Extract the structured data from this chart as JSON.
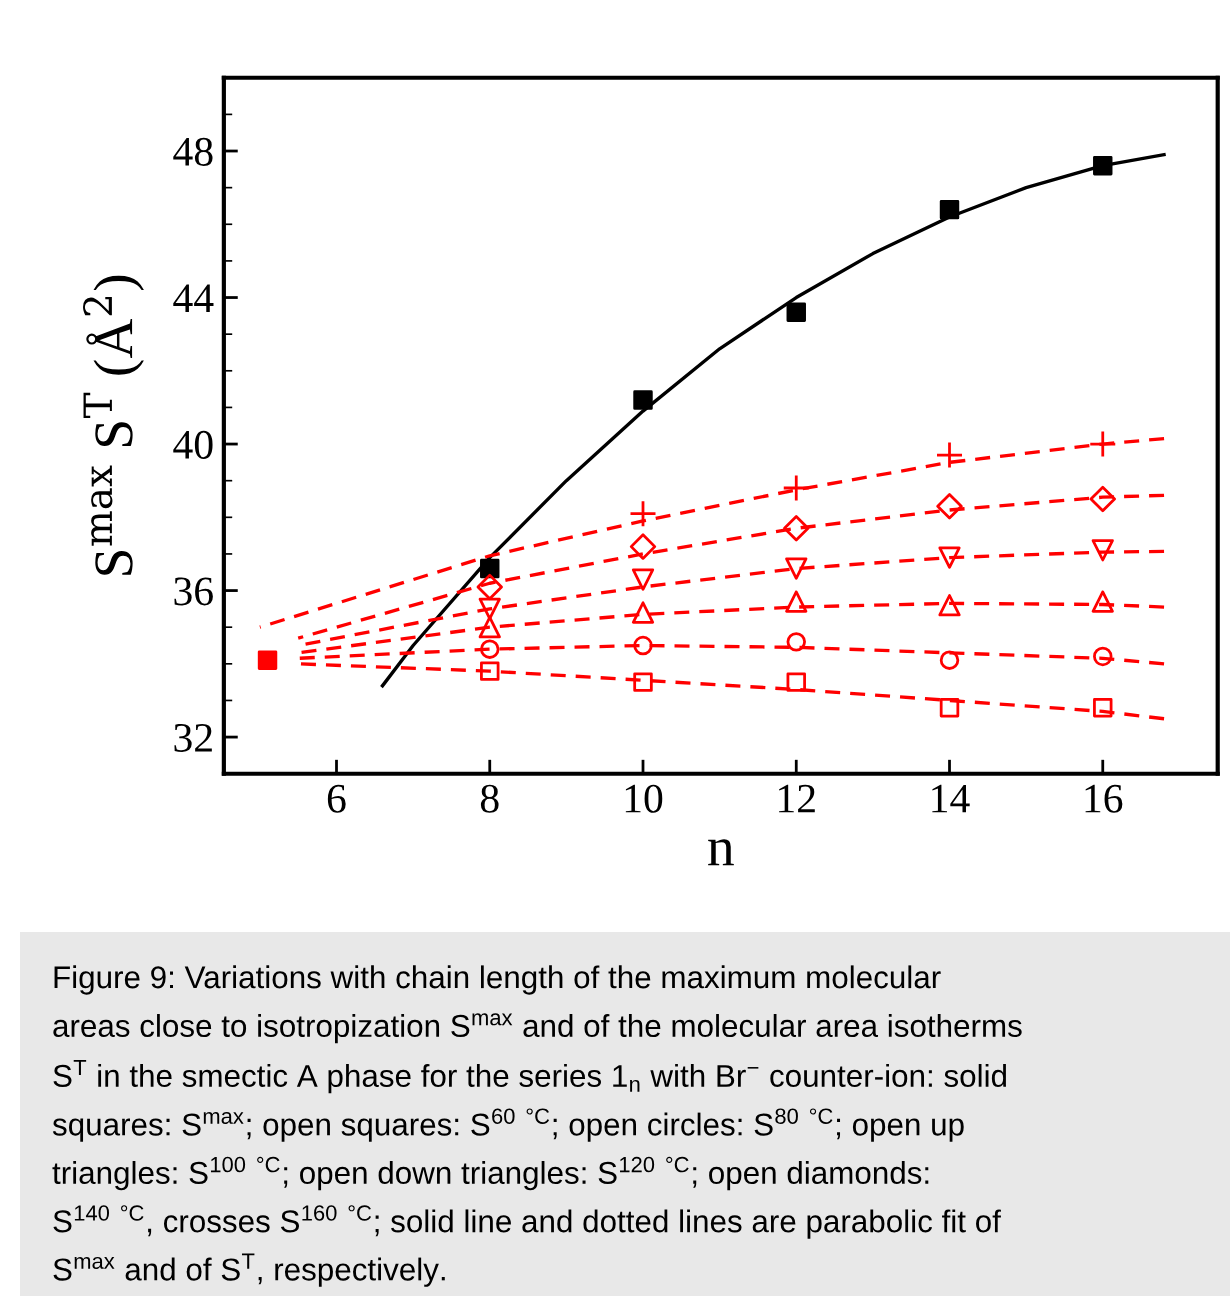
{
  "chart_data": {
    "type": "scatter",
    "xlabel": "n",
    "ylabel": "S$^{max}$ S$^{T}$ (Å$^{2}$)",
    "xlim": [
      4.53,
      17.5
    ],
    "ylim": [
      31,
      50
    ],
    "xticks": [
      6,
      8,
      10,
      12,
      14,
      16
    ],
    "yticks": [
      32,
      36,
      40,
      44,
      48
    ],
    "grid": false,
    "series": [
      {
        "type": "line",
        "color": "#000000",
        "marker": "none",
        "line_style": "solid",
        "x": [
          6.6,
          7,
          8,
          9,
          10,
          11,
          12,
          13,
          14,
          15,
          16,
          16.8
        ],
        "values": [
          33.4,
          34.5,
          36.9,
          39.0,
          40.9,
          42.6,
          44.0,
          45.2,
          46.2,
          47.0,
          47.6,
          47.9
        ]
      },
      {
        "color": "#000000",
        "marker": "square",
        "x": [
          8,
          10,
          12,
          14,
          16
        ],
        "values": [
          36.6,
          41.2,
          43.6,
          46.4,
          47.6
        ]
      },
      {
        "type": "line",
        "color": "#ff0000",
        "marker": "none",
        "line_style": "dashed",
        "x": [
          5.0,
          8,
          10,
          12,
          14,
          16,
          16.8
        ],
        "values": [
          35.0,
          36.95,
          37.9,
          38.75,
          39.5,
          40.0,
          40.15
        ]
      },
      {
        "type": "line",
        "color": "#ff0000",
        "marker": "none",
        "line_style": "dashed",
        "x": [
          5.5,
          8,
          10,
          12,
          14,
          16,
          16.8
        ],
        "values": [
          34.7,
          36.2,
          37.0,
          37.7,
          38.2,
          38.55,
          38.6
        ]
      },
      {
        "type": "line",
        "color": "#ff0000",
        "marker": "none",
        "line_style": "dashed",
        "x": [
          5.5,
          8,
          10,
          12,
          14,
          16,
          16.8
        ],
        "values": [
          34.5,
          35.5,
          36.1,
          36.6,
          36.9,
          37.05,
          37.07
        ]
      },
      {
        "type": "line",
        "color": "#ff0000",
        "marker": "none",
        "line_style": "dashed",
        "x": [
          5.5,
          8,
          10,
          12,
          14,
          16,
          16.8
        ],
        "values": [
          34.3,
          35.0,
          35.35,
          35.55,
          35.65,
          35.62,
          35.55
        ]
      },
      {
        "type": "line",
        "color": "#ff0000",
        "marker": "none",
        "line_style": "dashed",
        "x": [
          5.5,
          8,
          10,
          12,
          14,
          16,
          16.8
        ],
        "values": [
          34.15,
          34.4,
          34.5,
          34.45,
          34.3,
          34.15,
          34.0
        ]
      },
      {
        "type": "line",
        "color": "#ff0000",
        "marker": "none",
        "line_style": "dashed",
        "x": [
          5.5,
          8,
          10,
          12,
          14,
          16,
          16.8
        ],
        "values": [
          34.0,
          33.8,
          33.55,
          33.3,
          33.0,
          32.7,
          32.5
        ]
      },
      {
        "color": "#ff0000",
        "marker": "cross",
        "x": [
          10,
          12,
          14,
          16
        ],
        "values": [
          38.1,
          38.8,
          39.7,
          40.0
        ]
      },
      {
        "color": "#ff0000",
        "marker": "diamond",
        "x": [
          8,
          10,
          12,
          14,
          16
        ],
        "values": [
          36.1,
          37.2,
          37.7,
          38.3,
          38.5
        ]
      },
      {
        "color": "#ff0000",
        "marker": "triangle_down",
        "x": [
          8,
          10,
          12,
          14,
          16
        ],
        "values": [
          35.5,
          36.3,
          36.6,
          36.9,
          37.1
        ]
      },
      {
        "color": "#ff0000",
        "marker": "triangle",
        "x": [
          8,
          10,
          12,
          14,
          16
        ],
        "values": [
          35.0,
          35.4,
          35.7,
          35.6,
          35.7
        ]
      },
      {
        "color": "#ff0000",
        "marker": "circle",
        "x": [
          8,
          10,
          12,
          14,
          16
        ],
        "values": [
          34.4,
          34.5,
          34.6,
          34.1,
          34.2
        ]
      },
      {
        "color": "#ff0000",
        "marker": "square_open",
        "x": [
          8,
          10,
          12,
          14,
          16
        ],
        "values": [
          33.8,
          33.5,
          33.5,
          32.8,
          32.8
        ]
      },
      {
        "color": "#ff0000",
        "marker": "square",
        "x": [
          5.1
        ],
        "values": [
          34.1
        ]
      }
    ],
    "annotations": [
      "Figure 9: Variations with chain length of the maximum molecular",
      "areas close to isotropization S$^{max}$ and of the molecular area isotherms",
      "S$^{T}$ in the smectic A phase for the series 1$_{n}$ with Br$^{−}$ counter-ion: solid",
      "squares: S$^{max}$; open squares: S$^{60 °C}$; open circles: S$^{80 °C}$; open up",
      "triangles: S$^{100 °C}$; open down triangles: S$^{120 °C}$; open diamonds:",
      "S$^{140 °C}$, crosses S$^{160 °C}$; solid line and dotted lines are parabolic fit of",
      "S$^{max}$ and of S$^{T}$, respectively."
    ]
  }
}
